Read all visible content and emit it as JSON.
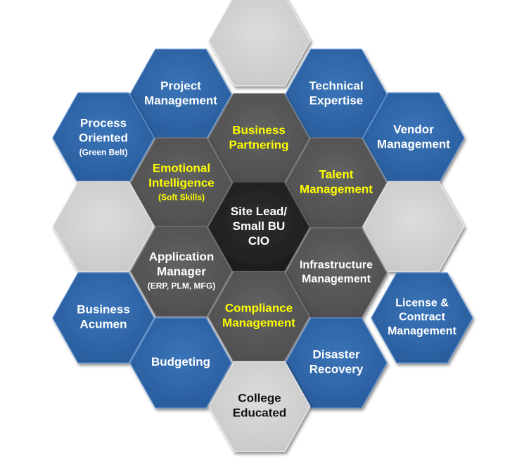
{
  "colors": {
    "blue": "#2f66a8",
    "blue_edge": "#5a8fd0",
    "gray": "#d4d4d4",
    "gray_edge": "#ececec",
    "dark": "#5a5a5a",
    "dark_edge": "#7a7a7a",
    "center": "#262626",
    "center_edge": "#4a4a4a",
    "text_white": "#ffffff",
    "text_yellow": "#ffff00",
    "text_black": "#111111"
  },
  "hexagons": [
    {
      "id": "top",
      "lines": []
    },
    {
      "id": "project-management",
      "lines": [
        "Project",
        "Management"
      ]
    },
    {
      "id": "technical-expertise",
      "lines": [
        "Technical",
        "Expertise"
      ]
    },
    {
      "id": "process-oriented",
      "lines": [
        "Process",
        "Oriented"
      ],
      "sub": "(Green Belt)"
    },
    {
      "id": "business-partnering",
      "lines": [
        "Business",
        "Partnering"
      ]
    },
    {
      "id": "vendor-management",
      "lines": [
        "Vendor",
        "Management"
      ]
    },
    {
      "id": "emotional-intelligence",
      "lines": [
        "Emotional",
        "Intelligence"
      ],
      "sub": "(Soft Skills)"
    },
    {
      "id": "talent-management",
      "lines": [
        "Talent",
        "Management"
      ]
    },
    {
      "id": "left-blank",
      "lines": []
    },
    {
      "id": "site-lead",
      "lines": [
        "Site Lead/",
        "Small BU",
        "CIO"
      ]
    },
    {
      "id": "right-blank",
      "lines": []
    },
    {
      "id": "application-manager",
      "lines": [
        "Application",
        "Manager"
      ],
      "sub": "(ERP, PLM, MFG)"
    },
    {
      "id": "infrastructure-management",
      "lines": [
        "Infrastructure",
        "Management"
      ]
    },
    {
      "id": "business-acumen",
      "lines": [
        "Business",
        "Acumen"
      ]
    },
    {
      "id": "compliance-management",
      "lines": [
        "Compliance",
        "Management"
      ]
    },
    {
      "id": "license-contract-management",
      "lines": [
        "License &",
        "Contract",
        "Management"
      ]
    },
    {
      "id": "budgeting",
      "lines": [
        "Budgeting"
      ]
    },
    {
      "id": "disaster-recovery",
      "lines": [
        "Disaster",
        "Recovery"
      ]
    },
    {
      "id": "college-educated",
      "lines": [
        "College",
        "Educated"
      ]
    }
  ]
}
